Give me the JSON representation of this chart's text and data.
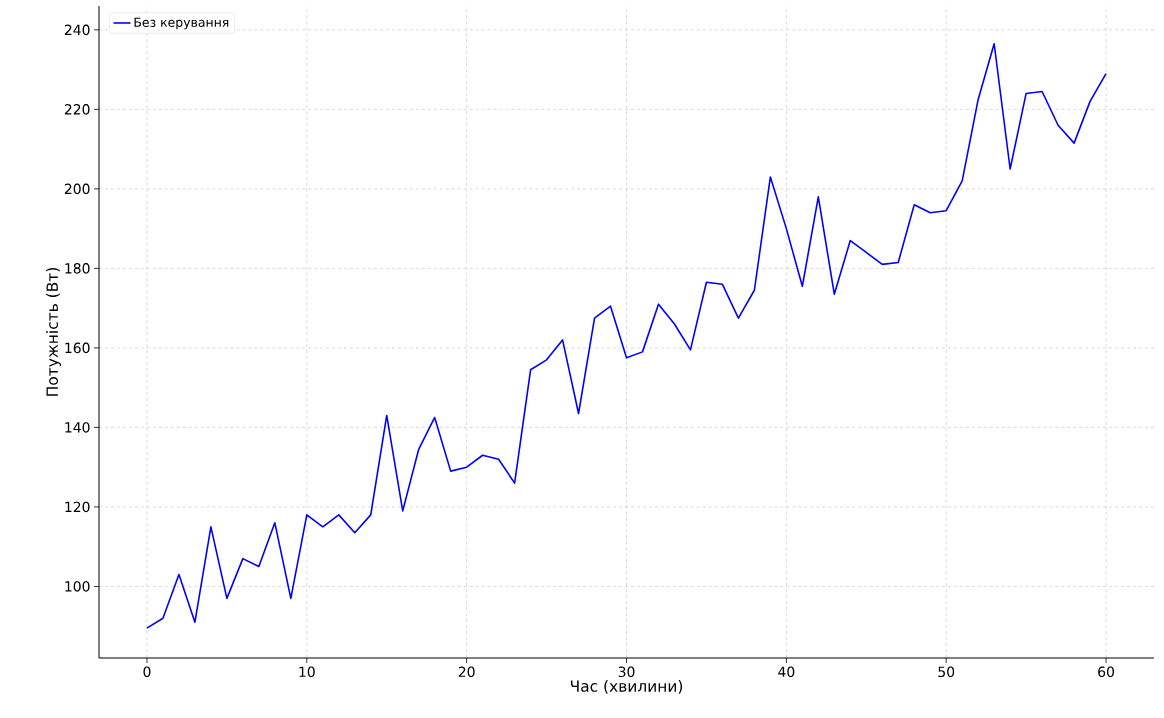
{
  "chart_data": {
    "type": "line",
    "xlabel": "Час (хвилини)",
    "ylabel": "Потужність (Вт)",
    "x": [
      0,
      1,
      2,
      3,
      4,
      5,
      6,
      7,
      8,
      9,
      10,
      11,
      12,
      13,
      14,
      15,
      16,
      17,
      18,
      19,
      20,
      21,
      22,
      23,
      24,
      25,
      26,
      27,
      28,
      29,
      30,
      31,
      32,
      33,
      34,
      35,
      36,
      37,
      38,
      39,
      40,
      41,
      42,
      43,
      44,
      45,
      46,
      47,
      48,
      49,
      50,
      51,
      52,
      53,
      54,
      55,
      56,
      57,
      58,
      59,
      60
    ],
    "series": [
      {
        "name": "Без керування",
        "color": "#0000ff",
        "values": [
          89.5,
          92,
          103,
          91,
          115,
          97,
          107,
          105,
          116,
          97,
          118,
          115,
          118,
          113.5,
          118,
          143,
          119,
          134.5,
          142.5,
          129,
          130,
          133,
          132,
          126,
          154.5,
          157,
          162,
          143.5,
          167.5,
          170.5,
          157.5,
          159,
          171,
          166,
          159.5,
          176.5,
          176,
          167.5,
          174.5,
          203,
          190,
          175.5,
          198,
          173.5,
          187,
          184,
          181,
          181.5,
          196,
          194,
          194.5,
          202,
          222.5,
          236.5,
          205,
          224,
          224.5,
          216,
          211.5,
          222,
          229
        ]
      }
    ],
    "xlim": [
      -3,
      63
    ],
    "ylim": [
      82,
      246
    ],
    "xticks": [
      0,
      10,
      20,
      30,
      40,
      50,
      60
    ],
    "yticks": [
      100,
      120,
      140,
      160,
      180,
      200,
      220,
      240
    ],
    "grid": true,
    "legend": "top left",
    "line_style": "solid",
    "marker": "none"
  }
}
